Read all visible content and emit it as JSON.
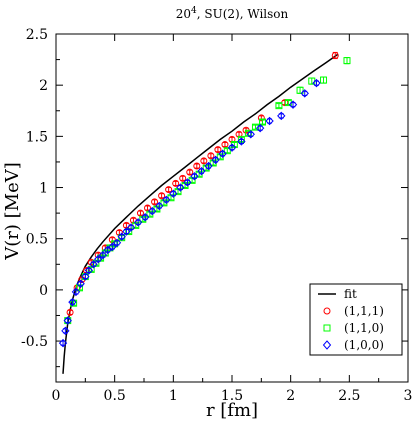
{
  "chart_data": {
    "type": "scatter",
    "title_main": "20",
    "title_sup": "4",
    "title_rest": ", SU(2), Wilson",
    "xlabel": "r [fm]",
    "ylabel": "V(r) [MeV]",
    "xlim": [
      0,
      3
    ],
    "ylim": [
      -0.9,
      2.5
    ],
    "xticks": [
      "0",
      "0.5",
      "1",
      "1.5",
      "2",
      "2.5",
      "3"
    ],
    "yticks": [
      "-0.5",
      "0",
      "0.5",
      "1",
      "1.5",
      "2",
      "2.5"
    ],
    "grid": false,
    "legend_position": "bottom-right",
    "fit": {
      "name": "fit",
      "color": "#000000",
      "x": [
        0.06,
        0.07,
        0.08,
        0.09,
        0.1,
        0.12,
        0.14,
        0.16,
        0.18,
        0.2,
        0.25,
        0.3,
        0.35,
        0.4,
        0.5,
        0.6,
        0.7,
        0.8,
        0.9,
        1.0,
        1.1,
        1.2,
        1.3,
        1.4,
        1.5,
        1.6,
        1.7,
        1.8,
        1.9,
        2.0,
        2.1,
        2.2,
        2.3,
        2.4
      ],
      "y": [
        -0.82,
        -0.65,
        -0.52,
        -0.42,
        -0.33,
        -0.2,
        -0.1,
        -0.02,
        0.05,
        0.11,
        0.23,
        0.32,
        0.4,
        0.47,
        0.6,
        0.71,
        0.82,
        0.92,
        1.02,
        1.11,
        1.2,
        1.29,
        1.38,
        1.47,
        1.55,
        1.64,
        1.72,
        1.81,
        1.89,
        1.98,
        2.06,
        2.14,
        2.22,
        2.3
      ]
    },
    "series": [
      {
        "name": "(1,1,1)",
        "color": "#ff0000",
        "marker": "circle",
        "x": [
          0.12,
          0.18,
          0.22,
          0.26,
          0.3,
          0.36,
          0.42,
          0.48,
          0.54,
          0.6,
          0.66,
          0.72,
          0.78,
          0.84,
          0.9,
          0.96,
          1.02,
          1.08,
          1.14,
          1.2,
          1.26,
          1.32,
          1.38,
          1.44,
          1.5,
          1.56,
          1.62,
          1.75,
          1.95,
          2.38
        ],
        "y": [
          -0.22,
          0.02,
          0.1,
          0.19,
          0.27,
          0.34,
          0.41,
          0.49,
          0.56,
          0.63,
          0.68,
          0.75,
          0.8,
          0.86,
          0.92,
          0.98,
          1.04,
          1.09,
          1.15,
          1.21,
          1.26,
          1.31,
          1.37,
          1.42,
          1.47,
          1.52,
          1.56,
          1.68,
          1.83,
          2.29
        ],
        "err": [
          0.02,
          0.02,
          0.02,
          0.02,
          0.02,
          0.02,
          0.02,
          0.02,
          0.02,
          0.02,
          0.02,
          0.02,
          0.02,
          0.02,
          0.02,
          0.02,
          0.02,
          0.02,
          0.02,
          0.02,
          0.02,
          0.02,
          0.02,
          0.02,
          0.02,
          0.02,
          0.02,
          0.02,
          0.02,
          0.03
        ]
      },
      {
        "name": "(1,1,0)",
        "color": "#00ff00",
        "marker": "square",
        "x": [
          0.1,
          0.15,
          0.2,
          0.25,
          0.3,
          0.34,
          0.38,
          0.42,
          0.46,
          0.5,
          0.56,
          0.62,
          0.68,
          0.74,
          0.8,
          0.86,
          0.92,
          0.98,
          1.04,
          1.1,
          1.16,
          1.22,
          1.28,
          1.34,
          1.4,
          1.46,
          1.52,
          1.58,
          1.64,
          1.7,
          1.76,
          1.9,
          1.98,
          2.08,
          2.18,
          2.28,
          2.48
        ],
        "y": [
          -0.3,
          -0.13,
          0.02,
          0.13,
          0.2,
          0.26,
          0.31,
          0.36,
          0.41,
          0.45,
          0.51,
          0.57,
          0.63,
          0.69,
          0.74,
          0.79,
          0.85,
          0.9,
          0.96,
          1.02,
          1.07,
          1.13,
          1.19,
          1.24,
          1.3,
          1.36,
          1.42,
          1.47,
          1.53,
          1.59,
          1.64,
          1.8,
          1.83,
          1.95,
          2.04,
          2.05,
          2.24
        ],
        "err": [
          0.02,
          0.02,
          0.02,
          0.02,
          0.02,
          0.02,
          0.02,
          0.02,
          0.02,
          0.02,
          0.02,
          0.02,
          0.02,
          0.02,
          0.02,
          0.02,
          0.02,
          0.02,
          0.02,
          0.02,
          0.02,
          0.02,
          0.02,
          0.02,
          0.02,
          0.02,
          0.02,
          0.02,
          0.02,
          0.02,
          0.02,
          0.02,
          0.02,
          0.03,
          0.03,
          0.03,
          0.03
        ]
      },
      {
        "name": "(1,0,0)",
        "color": "#0000ff",
        "marker": "diamond",
        "x": [
          0.06,
          0.08,
          0.1,
          0.14,
          0.17,
          0.21,
          0.25,
          0.28,
          0.32,
          0.36,
          0.4,
          0.44,
          0.48,
          0.52,
          0.56,
          0.6,
          0.64,
          0.7,
          0.76,
          0.82,
          0.88,
          0.94,
          1.0,
          1.06,
          1.12,
          1.18,
          1.24,
          1.3,
          1.36,
          1.42,
          1.5,
          1.58,
          1.66,
          1.74,
          1.82,
          1.92,
          2.02,
          2.12,
          2.22
        ],
        "y": [
          -0.52,
          -0.4,
          -0.3,
          -0.12,
          -0.02,
          0.06,
          0.13,
          0.19,
          0.25,
          0.3,
          0.34,
          0.39,
          0.42,
          0.46,
          0.52,
          0.57,
          0.61,
          0.66,
          0.71,
          0.77,
          0.82,
          0.88,
          0.94,
          1.0,
          1.05,
          1.11,
          1.16,
          1.21,
          1.27,
          1.33,
          1.39,
          1.45,
          1.52,
          1.58,
          1.65,
          1.7,
          1.81,
          1.92,
          2.02
        ],
        "err": [
          0.02,
          0.02,
          0.02,
          0.02,
          0.02,
          0.02,
          0.02,
          0.02,
          0.02,
          0.02,
          0.02,
          0.02,
          0.02,
          0.02,
          0.02,
          0.02,
          0.02,
          0.02,
          0.02,
          0.02,
          0.02,
          0.02,
          0.02,
          0.02,
          0.02,
          0.02,
          0.02,
          0.02,
          0.02,
          0.02,
          0.02,
          0.02,
          0.02,
          0.02,
          0.02,
          0.02,
          0.02,
          0.02,
          0.02
        ]
      }
    ]
  }
}
